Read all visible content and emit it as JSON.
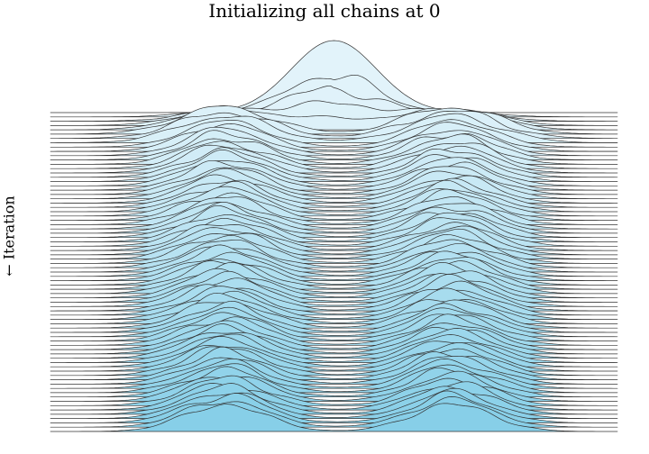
{
  "chart_data": {
    "type": "ridgeline",
    "title": "Initializing all chains at 0",
    "ylabel": "← Iteration",
    "xlabel": "",
    "x_range": [
      -6,
      6
    ],
    "series_count": 75,
    "target_distribution": {
      "description": "Bimodal mixture of two normals",
      "modes": [
        -2.3,
        2.5
      ],
      "mode_sd": 0.85
    },
    "initial_distribution": {
      "center": 0,
      "sd": 0.9
    },
    "mixing_iterations": 5,
    "fill_colors": {
      "first": "#e2f3fa",
      "last": "#87cfe8"
    },
    "line_color": "#333333"
  }
}
